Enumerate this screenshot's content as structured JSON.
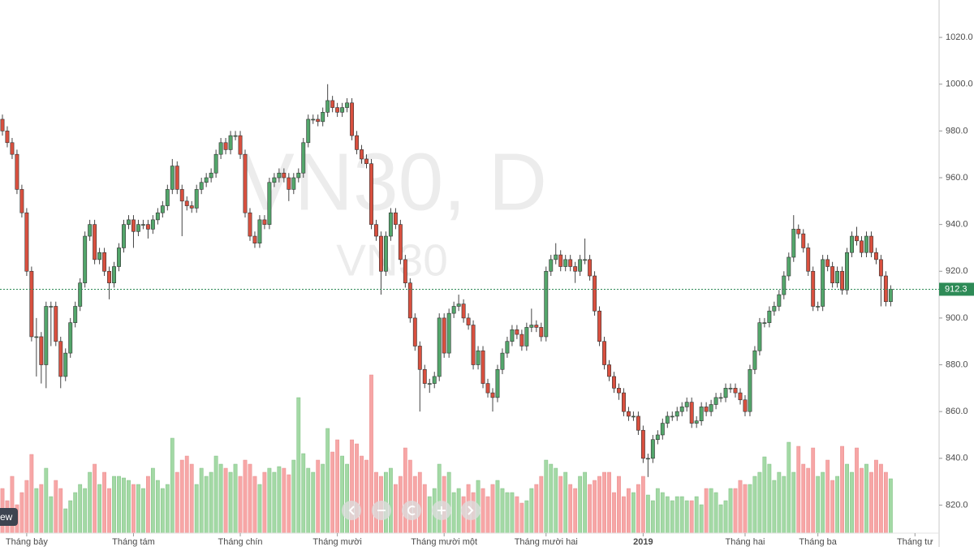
{
  "chart_data": {
    "type": "candlestick",
    "watermark": "VN30, D",
    "watermark_sub": "VN30",
    "logo_text": "ew",
    "ylim": [
      808,
      1036
    ],
    "yticks": [
      {
        "value": 820,
        "label": "820.0"
      },
      {
        "value": 840,
        "label": "840.0"
      },
      {
        "value": 860,
        "label": "860.0"
      },
      {
        "value": 880,
        "label": "880.0"
      },
      {
        "value": 900,
        "label": "900.0"
      },
      {
        "value": 920,
        "label": "920.0"
      },
      {
        "value": 940,
        "label": "940.0"
      },
      {
        "value": 960,
        "label": "960.0"
      },
      {
        "value": 980,
        "label": "980.0"
      },
      {
        "value": 1000,
        "label": "1000.0"
      },
      {
        "value": 1020,
        "label": "1020.0"
      }
    ],
    "xlim": [
      -0.5,
      191.8
    ],
    "xticks": [
      {
        "value": 5,
        "label": "Tháng bảy"
      },
      {
        "value": 27,
        "label": "Tháng tám"
      },
      {
        "value": 49,
        "label": "Tháng chín"
      },
      {
        "value": 69,
        "label": "Tháng mười"
      },
      {
        "value": 91,
        "label": "Tháng mười một"
      },
      {
        "value": 112,
        "label": "Tháng mười hai"
      },
      {
        "value": 132,
        "label": "2019"
      },
      {
        "value": 153,
        "label": "Tháng hai"
      },
      {
        "value": 168,
        "label": "Tháng ba"
      },
      {
        "value": 188,
        "label": "Tháng tư"
      }
    ],
    "last_price": 912.3,
    "up_color": "#53a66b",
    "down_color": "#d9503f",
    "up_volume_color": "#a3d9a5",
    "down_volume_color": "#f7a6a6",
    "last_price_color": "#2e8b57",
    "candles": [
      [
        985,
        987,
        978,
        980
      ],
      [
        980,
        982,
        973,
        975
      ],
      [
        975,
        977,
        968,
        970
      ],
      [
        970,
        972,
        953,
        955
      ],
      [
        955,
        957,
        943,
        945
      ],
      [
        945,
        947,
        918,
        920
      ],
      [
        920,
        922,
        890,
        892
      ],
      [
        892,
        900,
        875,
        892
      ],
      [
        892,
        894,
        872,
        880
      ],
      [
        880,
        907,
        870,
        905
      ],
      [
        905,
        907,
        888,
        905
      ],
      [
        905,
        907,
        888,
        890
      ],
      [
        890,
        892,
        870,
        875
      ],
      [
        875,
        887,
        873,
        885
      ],
      [
        885,
        900,
        883,
        898
      ],
      [
        898,
        907,
        896,
        905
      ],
      [
        905,
        917,
        903,
        915
      ],
      [
        915,
        937,
        913,
        935
      ],
      [
        935,
        942,
        933,
        940
      ],
      [
        940,
        942,
        923,
        925
      ],
      [
        925,
        930,
        923,
        928
      ],
      [
        928,
        930,
        918,
        920
      ],
      [
        920,
        922,
        908,
        915
      ],
      [
        915,
        924,
        913,
        922
      ],
      [
        922,
        932,
        920,
        930
      ],
      [
        930,
        942,
        928,
        940
      ],
      [
        940,
        944,
        938,
        942
      ],
      [
        942,
        944,
        930,
        937
      ],
      [
        937,
        942,
        935,
        940
      ],
      [
        940,
        942,
        938,
        940
      ],
      [
        940,
        942,
        934,
        938
      ],
      [
        938,
        944,
        936,
        942
      ],
      [
        942,
        947,
        940,
        945
      ],
      [
        945,
        950,
        943,
        948
      ],
      [
        948,
        957,
        946,
        955
      ],
      [
        955,
        968,
        953,
        965
      ],
      [
        965,
        967,
        953,
        955
      ],
      [
        955,
        957,
        935,
        950
      ],
      [
        950,
        952,
        946,
        948
      ],
      [
        948,
        950,
        945,
        947
      ],
      [
        947,
        957,
        945,
        955
      ],
      [
        955,
        960,
        953,
        958
      ],
      [
        958,
        962,
        956,
        960
      ],
      [
        960,
        964,
        958,
        962
      ],
      [
        962,
        972,
        960,
        970
      ],
      [
        970,
        977,
        968,
        975
      ],
      [
        975,
        977,
        970,
        972
      ],
      [
        972,
        980,
        970,
        978
      ],
      [
        978,
        980,
        976,
        978
      ],
      [
        978,
        980,
        968,
        970
      ],
      [
        970,
        972,
        943,
        945
      ],
      [
        945,
        947,
        933,
        935
      ],
      [
        935,
        937,
        930,
        932
      ],
      [
        932,
        944,
        930,
        942
      ],
      [
        942,
        944,
        938,
        940
      ],
      [
        940,
        960,
        938,
        958
      ],
      [
        958,
        962,
        956,
        960
      ],
      [
        960,
        964,
        958,
        962
      ],
      [
        962,
        964,
        958,
        960
      ],
      [
        960,
        962,
        950,
        955
      ],
      [
        955,
        962,
        953,
        960
      ],
      [
        960,
        964,
        958,
        962
      ],
      [
        962,
        977,
        960,
        975
      ],
      [
        975,
        987,
        973,
        985
      ],
      [
        985,
        987,
        983,
        985
      ],
      [
        985,
        987,
        982,
        984
      ],
      [
        984,
        990,
        982,
        988
      ],
      [
        988,
        1000,
        986,
        993
      ],
      [
        993,
        995,
        988,
        990
      ],
      [
        990,
        992,
        986,
        988
      ],
      [
        988,
        992,
        986,
        990
      ],
      [
        990,
        994,
        988,
        992
      ],
      [
        992,
        994,
        976,
        978
      ],
      [
        978,
        980,
        970,
        972
      ],
      [
        972,
        974,
        966,
        968
      ],
      [
        968,
        970,
        964,
        966
      ],
      [
        966,
        968,
        938,
        940
      ],
      [
        940,
        942,
        933,
        935
      ],
      [
        935,
        937,
        910,
        920
      ],
      [
        920,
        937,
        918,
        935
      ],
      [
        935,
        947,
        933,
        945
      ],
      [
        945,
        947,
        938,
        940
      ],
      [
        940,
        942,
        923,
        925
      ],
      [
        925,
        927,
        913,
        915
      ],
      [
        915,
        917,
        898,
        900
      ],
      [
        900,
        902,
        886,
        888
      ],
      [
        888,
        890,
        860,
        878
      ],
      [
        878,
        880,
        870,
        872
      ],
      [
        872,
        874,
        868,
        872
      ],
      [
        872,
        877,
        870,
        875
      ],
      [
        875,
        902,
        873,
        900
      ],
      [
        900,
        902,
        883,
        885
      ],
      [
        885,
        904,
        883,
        902
      ],
      [
        902,
        907,
        900,
        905
      ],
      [
        905,
        910,
        903,
        906
      ],
      [
        906,
        908,
        898,
        900
      ],
      [
        900,
        902,
        895,
        897
      ],
      [
        897,
        899,
        878,
        880
      ],
      [
        880,
        888,
        878,
        886
      ],
      [
        886,
        888,
        870,
        872
      ],
      [
        872,
        874,
        866,
        868
      ],
      [
        868,
        870,
        860,
        866
      ],
      [
        866,
        880,
        864,
        878
      ],
      [
        878,
        887,
        876,
        885
      ],
      [
        885,
        892,
        883,
        890
      ],
      [
        890,
        897,
        888,
        895
      ],
      [
        895,
        897,
        891,
        893
      ],
      [
        893,
        895,
        886,
        888
      ],
      [
        888,
        898,
        886,
        896
      ],
      [
        896,
        904,
        894,
        897
      ],
      [
        897,
        899,
        894,
        896
      ],
      [
        896,
        898,
        890,
        892
      ],
      [
        892,
        922,
        890,
        920
      ],
      [
        920,
        927,
        918,
        925
      ],
      [
        925,
        932,
        923,
        927
      ],
      [
        927,
        929,
        920,
        922
      ],
      [
        922,
        927,
        920,
        925
      ],
      [
        925,
        927,
        920,
        922
      ],
      [
        922,
        924,
        915,
        920
      ],
      [
        920,
        927,
        918,
        925
      ],
      [
        925,
        934,
        923,
        925
      ],
      [
        925,
        927,
        916,
        918
      ],
      [
        918,
        920,
        901,
        903
      ],
      [
        903,
        905,
        888,
        890
      ],
      [
        890,
        892,
        878,
        880
      ],
      [
        880,
        882,
        873,
        875
      ],
      [
        875,
        877,
        868,
        870
      ],
      [
        870,
        872,
        865,
        868
      ],
      [
        868,
        870,
        858,
        860
      ],
      [
        860,
        862,
        856,
        858
      ],
      [
        858,
        860,
        856,
        858
      ],
      [
        858,
        860,
        850,
        852
      ],
      [
        852,
        854,
        838,
        840
      ],
      [
        840,
        842,
        832,
        840
      ],
      [
        840,
        850,
        838,
        848
      ],
      [
        848,
        852,
        846,
        850
      ],
      [
        850,
        857,
        848,
        855
      ],
      [
        855,
        860,
        853,
        858
      ],
      [
        858,
        860,
        856,
        858
      ],
      [
        858,
        862,
        856,
        860
      ],
      [
        860,
        864,
        858,
        862
      ],
      [
        862,
        866,
        860,
        864
      ],
      [
        864,
        866,
        853,
        855
      ],
      [
        855,
        858,
        853,
        856
      ],
      [
        856,
        864,
        854,
        862
      ],
      [
        862,
        864,
        858,
        860
      ],
      [
        860,
        865,
        858,
        863
      ],
      [
        863,
        868,
        861,
        866
      ],
      [
        866,
        868,
        864,
        866
      ],
      [
        866,
        872,
        864,
        870
      ],
      [
        870,
        872,
        868,
        870
      ],
      [
        870,
        872,
        866,
        868
      ],
      [
        868,
        870,
        863,
        865
      ],
      [
        865,
        867,
        858,
        860
      ],
      [
        860,
        880,
        858,
        878
      ],
      [
        878,
        888,
        876,
        886
      ],
      [
        886,
        900,
        884,
        898
      ],
      [
        898,
        900,
        896,
        898
      ],
      [
        898,
        905,
        896,
        903
      ],
      [
        903,
        907,
        901,
        905
      ],
      [
        905,
        912,
        903,
        910
      ],
      [
        910,
        920,
        908,
        918
      ],
      [
        918,
        928,
        916,
        926
      ],
      [
        926,
        944,
        924,
        938
      ],
      [
        938,
        940,
        934,
        936
      ],
      [
        936,
        938,
        928,
        930
      ],
      [
        930,
        932,
        918,
        920
      ],
      [
        920,
        922,
        903,
        905
      ],
      [
        905,
        907,
        903,
        905
      ],
      [
        905,
        927,
        903,
        925
      ],
      [
        925,
        927,
        920,
        922
      ],
      [
        922,
        924,
        913,
        915
      ],
      [
        915,
        922,
        913,
        920
      ],
      [
        920,
        922,
        910,
        912
      ],
      [
        912,
        930,
        910,
        928
      ],
      [
        928,
        937,
        926,
        935
      ],
      [
        935,
        939,
        931,
        933
      ],
      [
        933,
        935,
        926,
        928
      ],
      [
        928,
        937,
        926,
        935
      ],
      [
        935,
        937,
        926,
        928
      ],
      [
        928,
        930,
        923,
        925
      ],
      [
        925,
        927,
        905,
        918
      ],
      [
        918,
        920,
        905,
        907
      ],
      [
        907,
        914,
        905,
        912.3
      ]
    ],
    "volume": [
      55,
      40,
      70,
      35,
      50,
      65,
      97,
      55,
      60,
      80,
      45,
      65,
      55,
      30,
      40,
      50,
      60,
      55,
      75,
      85,
      60,
      75,
      55,
      70,
      70,
      68,
      65,
      60,
      60,
      55,
      70,
      80,
      65,
      55,
      60,
      117,
      75,
      90,
      95,
      85,
      60,
      80,
      70,
      75,
      95,
      85,
      80,
      75,
      85,
      70,
      90,
      85,
      70,
      60,
      75,
      80,
      75,
      82,
      80,
      72,
      90,
      167,
      98,
      80,
      75,
      90,
      85,
      129,
      100,
      115,
      95,
      85,
      115,
      110,
      95,
      90,
      195,
      75,
      70,
      75,
      80,
      60,
      70,
      105,
      90,
      70,
      75,
      60,
      45,
      55,
      85,
      70,
      75,
      50,
      55,
      45,
      60,
      50,
      65,
      55,
      45,
      60,
      65,
      55,
      50,
      50,
      45,
      37,
      40,
      55,
      60,
      70,
      90,
      85,
      80,
      70,
      75,
      60,
      55,
      70,
      75,
      60,
      65,
      70,
      75,
      75,
      50,
      70,
      45,
      55,
      50,
      60,
      70,
      47,
      40,
      55,
      50,
      45,
      40,
      45,
      45,
      40,
      40,
      45,
      35,
      55,
      55,
      50,
      35,
      40,
      55,
      55,
      65,
      60,
      60,
      70,
      75,
      94,
      85,
      65,
      75,
      70,
      112,
      75,
      107,
      85,
      80,
      105,
      70,
      75,
      90,
      65,
      70,
      107,
      85,
      75,
      105,
      80,
      85,
      75,
      90,
      85,
      75,
      67
    ]
  }
}
